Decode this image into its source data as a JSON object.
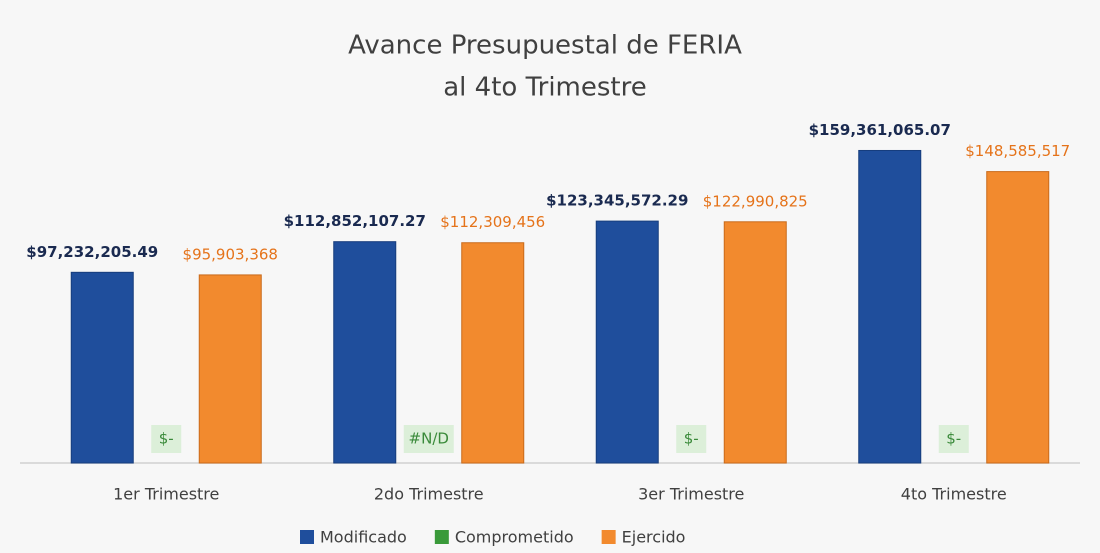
{
  "chart_data": {
    "type": "bar",
    "title": [
      "Avance Presupuestal de FERIA",
      "al 4to Trimestre"
    ],
    "categories": [
      "1er Trimestre",
      "2do Trimestre",
      "3er Trimestre",
      "4to Trimestre"
    ],
    "series": [
      {
        "name": "Modificado",
        "color": "#1f4e9c",
        "values": [
          97232205.49,
          112852107.27,
          123345572.29,
          159361065.07
        ],
        "value_labels": [
          "$97,232,205.49",
          "$112,852,107.27",
          "$123,345,572.29",
          "$159,361,065.07"
        ]
      },
      {
        "name": "Comprometido",
        "color": "#3a9a3a",
        "values": [
          0,
          null,
          0,
          0
        ],
        "value_labels": [
          "$-",
          "#N/D",
          "$-",
          "$-"
        ]
      },
      {
        "name": "Ejercido",
        "color": "#f28a2e",
        "values": [
          95903368,
          112309456,
          122990825,
          148585517
        ],
        "value_labels": [
          "$95,903,368",
          "$112,309,456",
          "$122,990,825",
          "$148,585,517"
        ]
      }
    ],
    "ylim": [
      0,
      180000000
    ],
    "legend": "bottom"
  }
}
